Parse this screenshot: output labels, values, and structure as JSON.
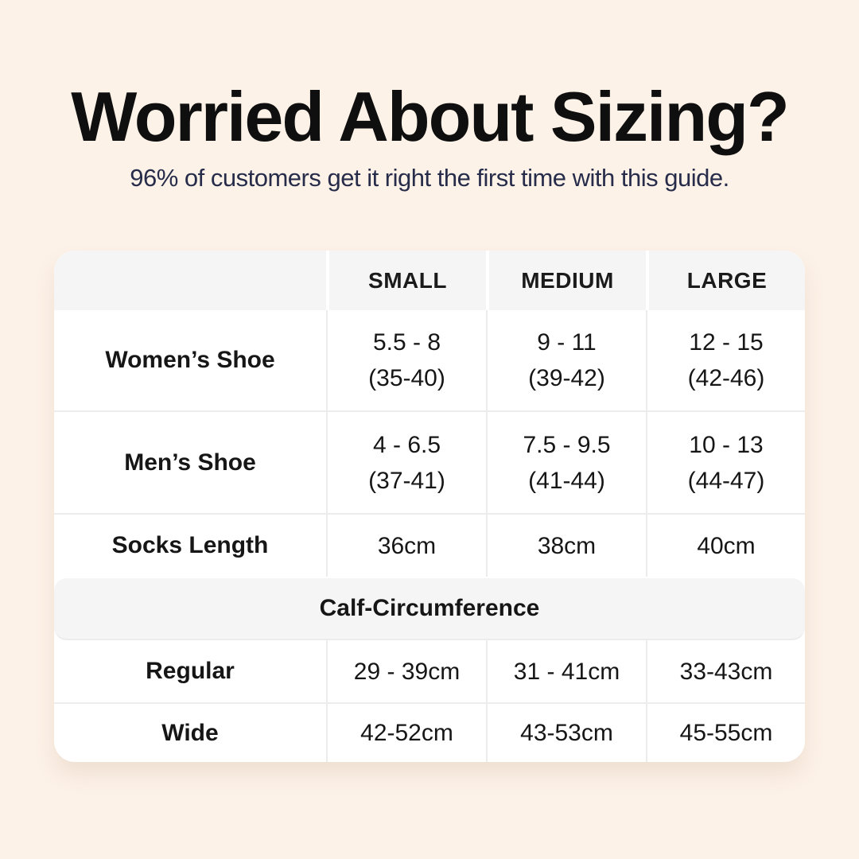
{
  "page": {
    "title": "Worried About Sizing?",
    "subtitle": "96% of customers get it right the first time with this guide."
  },
  "colors": {
    "background": "#fdf2e8",
    "table_bg": "#ffffff",
    "header_bg": "#f5f5f5",
    "divider": "#ececec",
    "title_text": "#0f0f0f",
    "subtitle_text": "#262c4a",
    "table_text": "#161616"
  },
  "table": {
    "columns": [
      "",
      "SMALL",
      "MEDIUM",
      "LARGE"
    ],
    "rows": [
      {
        "label": "Women’s Shoe",
        "cells": [
          {
            "line1": "5.5 - 8",
            "line2": "(35-40)"
          },
          {
            "line1": "9 - 11",
            "line2": "(39-42)"
          },
          {
            "line1": "12 - 15",
            "line2": "(42-46)"
          }
        ]
      },
      {
        "label": "Men’s Shoe",
        "cells": [
          {
            "line1": "4 - 6.5",
            "line2": "(37-41)"
          },
          {
            "line1": "7.5 - 9.5",
            "line2": "(41-44)"
          },
          {
            "line1": "10 - 13",
            "line2": "(44-47)"
          }
        ]
      },
      {
        "label": "Socks Length",
        "cells": [
          {
            "line1": "36cm"
          },
          {
            "line1": "38cm"
          },
          {
            "line1": "40cm"
          }
        ]
      }
    ],
    "section_header": "Calf-Circumference",
    "section_rows": [
      {
        "label": "Regular",
        "cells": [
          {
            "line1": "29 - 39cm"
          },
          {
            "line1": "31 - 41cm"
          },
          {
            "line1": "33-43cm"
          }
        ]
      },
      {
        "label": "Wide",
        "cells": [
          {
            "line1": "42-52cm"
          },
          {
            "line1": "43-53cm"
          },
          {
            "line1": "45-55cm"
          }
        ]
      }
    ]
  }
}
